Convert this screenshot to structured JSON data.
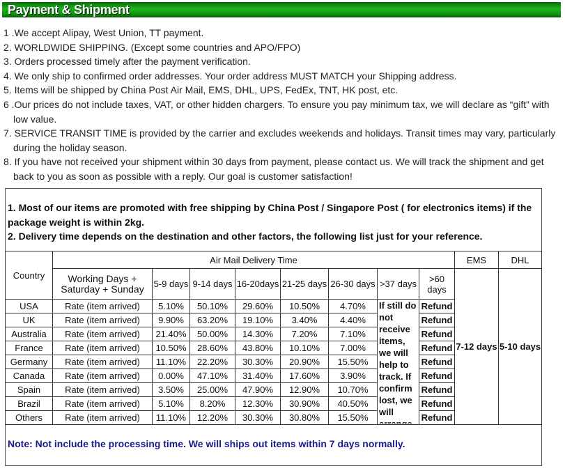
{
  "title": "Payment & Shipment",
  "terms": [
    "1 .We accept Alipay, West Union, TT payment.",
    "2. WORLDWIDE SHIPPING. (Except some countries and APO/FPO)",
    "3. Orders processed timely after the payment verification.",
    "4. We only ship to confirmed order addresses. Your order address MUST MATCH your Shipping address.",
    "5. Items will be shipped by China Post Air Mail, EMS, DHL, UPS, FedEx, TNT, HK post, etc.",
    "6 .Our prices do not include taxes, VAT, or other hidden chargers. To ensure you pay minimum tax, we will declare as “gift” with low value.",
    "7. SERVICE TRANSIT TIME is provided by the carrier and excludes weekends and holidays. Transit times may vary, particularly during the holiday season.",
    "8. If you have not received your shipment within 30 days from payment, please contact us. We will track the shipment and get back to you as soon as possible with a reply. Our goal is customer satisfaction!"
  ],
  "intro": [
    "1. Most of our items are promoted with free shipping by China Post / Singapore Post ( for electronics items) if the package weight is within 2kg.",
    "2. Delivery time depends on the destination and other factors, the following list  just for your reference."
  ],
  "table": {
    "country": "Country",
    "airmail": "Air Mail Delivery Time",
    "ems": "EMS",
    "dhl": "DHL",
    "working": "Working Days + Saturday + Sunday",
    "cols": [
      "5-9 days",
      "9-14 days",
      "16-20days",
      "21-25 days",
      "26-30 days",
      ">37 days",
      ">60 days"
    ],
    "track_note": "If still do not receive items, we will help to track. If confirm lost, we will arrange.",
    "ems_time": "7-12 days",
    "dhl_time": "5-10 days",
    "rows": [
      {
        "country": "USA",
        "label": "Rate (item arrived)",
        "v": [
          "5.10%",
          "50.10%",
          "29.60%",
          "10.50%",
          "4.70%"
        ],
        "last": "Refund"
      },
      {
        "country": "UK",
        "label": "Rate (item arrived)",
        "v": [
          "9.90%",
          "63.20%",
          "19.10%",
          "3.40%",
          "4.40%"
        ],
        "last": "Refund"
      },
      {
        "country": "Australia",
        "label": "Rate (item arrived)",
        "v": [
          "21.40%",
          "50.00%",
          "14.30%",
          "7.20%",
          "7.10%"
        ],
        "last": "Refund"
      },
      {
        "country": "France",
        "label": "Rate (item arrived)",
        "v": [
          "10.50%",
          "28.60%",
          "43.80%",
          "10.10%",
          "7.00%"
        ],
        "last": "Refund"
      },
      {
        "country": "Germany",
        "label": "Rate (item arrived)",
        "v": [
          "11.10%",
          "22.20%",
          "30.30%",
          "20.90%",
          "15.50%"
        ],
        "last": "Refund"
      },
      {
        "country": "Canada",
        "label": "Rate (item arrived)",
        "v": [
          "0.00%",
          "47.10%",
          "31.40%",
          "17.60%",
          "3.90%"
        ],
        "last": "Refund"
      },
      {
        "country": "Spain",
        "label": "Rate (item arrived)",
        "v": [
          "3.50%",
          "25.00%",
          "47.90%",
          "12.90%",
          "10.70%"
        ],
        "last": "Refund"
      },
      {
        "country": "Brazil",
        "label": "Rate (item arrived)",
        "v": [
          "5.10%",
          "8.20%",
          "12.30%",
          "30.90%",
          "40.50%"
        ],
        "last": "Refund"
      },
      {
        "country": "Others",
        "label": "Rate (item arrived)",
        "v": [
          "11.10%",
          "12.20%",
          "30.30%",
          "30.80%",
          "15.50%"
        ],
        "last": "Refund"
      }
    ]
  },
  "note": "Note: Not include the processing time.  We will ships out items within 7 days normally."
}
